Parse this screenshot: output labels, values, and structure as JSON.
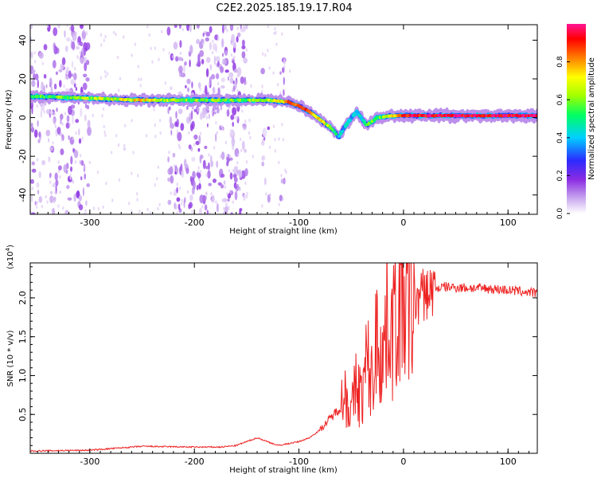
{
  "title": "C2E2.2025.185.19.17.R04",
  "chart_data": [
    {
      "type": "heatmap",
      "xlabel": "Height of straight line (km)",
      "ylabel": "Frequency (Hz)",
      "xlim": [
        -357,
        128
      ],
      "ylim": [
        -50,
        48
      ],
      "xticks": [
        -300,
        -200,
        -100,
        0,
        100
      ],
      "yticks": [
        -40,
        -20,
        0,
        20,
        40
      ],
      "colorbar": {
        "label": "Normalized spectral amplitude",
        "range": [
          0,
          1
        ],
        "ticks": [
          "0.0",
          "0.2",
          "0.4",
          "0.6",
          "0.8"
        ],
        "colormap": [
          "#ffffff",
          "#c9a8ef",
          "#8a2be2",
          "#2b2bff",
          "#00d0ff",
          "#00ff60",
          "#a0ff00",
          "#ffff00",
          "#ff8000",
          "#ff0000",
          "#ff1493"
        ]
      },
      "ridge": {
        "x": [
          -357,
          -300,
          -250,
          -200,
          -160,
          -130,
          -110,
          -100,
          -90,
          -80,
          -70,
          -62,
          -55,
          -45,
          -35,
          -25,
          -10,
          0,
          50,
          128
        ],
        "freq": [
          11,
          10,
          9,
          9,
          9,
          9,
          8,
          6,
          3,
          -1,
          -5,
          -10,
          -4,
          3,
          -4,
          0,
          1,
          1,
          1,
          1
        ],
        "amplitude": [
          0.5,
          0.6,
          0.7,
          0.55,
          0.55,
          0.6,
          0.8,
          0.85,
          0.8,
          0.7,
          0.6,
          0.4,
          0.4,
          0.45,
          0.5,
          0.55,
          0.7,
          0.9,
          0.95,
          0.95
        ]
      },
      "noise_bands": [
        {
          "x": [
            -357,
            -300
          ],
          "level": 0.35
        },
        {
          "x": [
            -225,
            -150
          ],
          "level": 0.4
        },
        {
          "x": [
            -135,
            -128
          ],
          "level": 0.15
        },
        {
          "x": [
            -118,
            -112
          ],
          "level": 0.15
        }
      ]
    },
    {
      "type": "line",
      "xlabel": "Height of straight line (km)",
      "ylabel": "SNR (10 * v/v)",
      "scale_label": "(x10",
      "scale_exp": "4",
      "scale_close": ")",
      "xlim": [
        -357,
        128
      ],
      "ylim": [
        0,
        2.45
      ],
      "xticks": [
        -300,
        -200,
        -100,
        0,
        100
      ],
      "yticks": [
        "0.5",
        "1.0",
        "1.5",
        "2.0"
      ],
      "series": [
        {
          "color": "#ee2222",
          "x": [
            -357,
            -300,
            -250,
            -200,
            -175,
            -160,
            -140,
            -120,
            -100,
            -90,
            -80,
            -70,
            -60,
            -55,
            -50,
            -45,
            -40,
            -35,
            -30,
            -25,
            -20,
            -15,
            -10,
            -5,
            0,
            5,
            10,
            20,
            30,
            40,
            60,
            80,
            100,
            128
          ],
          "y": [
            0.03,
            0.04,
            0.09,
            0.08,
            0.08,
            0.1,
            0.2,
            0.1,
            0.15,
            0.2,
            0.3,
            0.45,
            0.6,
            0.8,
            0.5,
            0.9,
            0.7,
            1.2,
            0.9,
            1.6,
            1.2,
            1.85,
            1.6,
            1.9,
            2.0,
            1.8,
            1.95,
            2.05,
            2.12,
            2.14,
            2.13,
            2.12,
            2.1,
            2.06
          ]
        }
      ]
    }
  ]
}
